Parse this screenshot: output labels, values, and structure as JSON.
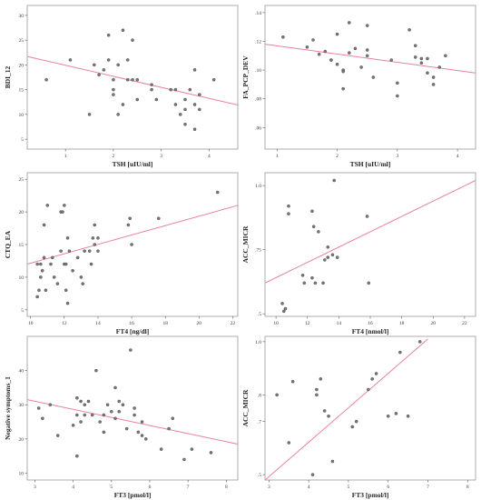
{
  "chart_data": [
    {
      "type": "scatter",
      "xlabel": "TSH [uIU/ml]",
      "ylabel": "BDI_12",
      "xlim": [
        0.2,
        4.6
      ],
      "ylim": [
        3,
        32
      ],
      "xticks": [
        1,
        2,
        3,
        4
      ],
      "yticks": [
        5,
        10,
        15,
        20,
        25,
        30
      ],
      "points": [
        [
          0.6,
          17
        ],
        [
          1.1,
          21
        ],
        [
          1.5,
          10
        ],
        [
          1.6,
          20
        ],
        [
          1.7,
          18
        ],
        [
          1.8,
          19
        ],
        [
          1.9,
          21
        ],
        [
          1.9,
          26
        ],
        [
          2.0,
          17
        ],
        [
          2.0,
          15
        ],
        [
          2.0,
          14
        ],
        [
          2.1,
          20
        ],
        [
          2.1,
          10
        ],
        [
          2.2,
          27
        ],
        [
          2.2,
          12
        ],
        [
          2.3,
          21
        ],
        [
          2.3,
          17
        ],
        [
          2.4,
          25
        ],
        [
          2.4,
          17
        ],
        [
          2.5,
          17
        ],
        [
          2.5,
          13
        ],
        [
          2.8,
          16
        ],
        [
          2.8,
          15
        ],
        [
          2.9,
          13
        ],
        [
          3.2,
          15
        ],
        [
          3.3,
          15
        ],
        [
          3.3,
          12
        ],
        [
          3.4,
          10
        ],
        [
          3.5,
          13
        ],
        [
          3.5,
          11
        ],
        [
          3.5,
          8
        ],
        [
          3.6,
          15
        ],
        [
          3.7,
          7
        ],
        [
          3.7,
          19
        ],
        [
          3.7,
          12
        ],
        [
          3.8,
          14
        ],
        [
          3.8,
          11
        ],
        [
          4.1,
          17
        ]
      ],
      "fit_line": [
        [
          0.2,
          21.7
        ],
        [
          4.6,
          11.9
        ]
      ]
    },
    {
      "type": "scatter",
      "xlabel": "TSH [uIU/ml]",
      "ylabel": "FA_PCP_DEV",
      "xlim": [
        0.8,
        4.3
      ],
      "ylim": [
        0.045,
        0.145
      ],
      "xticks": [
        1,
        2,
        3,
        4
      ],
      "yticks": [
        0.06,
        0.08,
        0.1,
        0.12,
        0.14
      ],
      "tick_labels_y": [
        ".06",
        ".08",
        ".10",
        ".12",
        ".14"
      ],
      "points": [
        [
          1.1,
          0.123
        ],
        [
          1.5,
          0.116
        ],
        [
          1.6,
          0.121
        ],
        [
          1.7,
          0.111
        ],
        [
          1.8,
          0.113
        ],
        [
          1.9,
          0.107
        ],
        [
          1.9,
          0.107
        ],
        [
          2.0,
          0.125
        ],
        [
          2.0,
          0.104
        ],
        [
          2.1,
          0.1
        ],
        [
          2.1,
          0.099
        ],
        [
          2.1,
          0.087
        ],
        [
          2.2,
          0.133
        ],
        [
          2.2,
          0.112
        ],
        [
          2.3,
          0.115
        ],
        [
          2.4,
          0.102
        ],
        [
          2.5,
          0.131
        ],
        [
          2.5,
          0.114
        ],
        [
          2.5,
          0.11
        ],
        [
          2.6,
          0.095
        ],
        [
          2.9,
          0.107
        ],
        [
          3.0,
          0.091
        ],
        [
          3.0,
          0.082
        ],
        [
          3.2,
          0.128
        ],
        [
          3.3,
          0.117
        ],
        [
          3.3,
          0.109
        ],
        [
          3.4,
          0.108
        ],
        [
          3.4,
          0.105
        ],
        [
          3.5,
          0.098
        ],
        [
          3.5,
          0.108
        ],
        [
          3.6,
          0.095
        ],
        [
          3.6,
          0.09
        ],
        [
          3.7,
          0.102
        ],
        [
          3.8,
          0.11
        ]
      ],
      "fit_line": [
        [
          0.8,
          0.118
        ],
        [
          4.3,
          0.098
        ]
      ]
    },
    {
      "type": "scatter",
      "xlabel": "FT4 [ng/dl]",
      "ylabel": "CTQ_EA",
      "xlim": [
        9.8,
        22.3
      ],
      "ylim": [
        4,
        26
      ],
      "xticks": [
        10,
        12,
        14,
        16,
        18,
        20,
        22
      ],
      "yticks": [
        5,
        10,
        15,
        20,
        25
      ],
      "points": [
        [
          10.4,
          7
        ],
        [
          10.4,
          12
        ],
        [
          10.5,
          8
        ],
        [
          10.6,
          10
        ],
        [
          10.6,
          12
        ],
        [
          10.7,
          11
        ],
        [
          10.8,
          13
        ],
        [
          10.8,
          18
        ],
        [
          10.9,
          8
        ],
        [
          11.0,
          21
        ],
        [
          11.2,
          12
        ],
        [
          11.3,
          13
        ],
        [
          11.4,
          10
        ],
        [
          11.6,
          9
        ],
        [
          11.8,
          14
        ],
        [
          11.8,
          20
        ],
        [
          11.9,
          20
        ],
        [
          12.0,
          21
        ],
        [
          12.0,
          12
        ],
        [
          12.1,
          8
        ],
        [
          12.1,
          12
        ],
        [
          12.2,
          16
        ],
        [
          12.2,
          6
        ],
        [
          12.3,
          14
        ],
        [
          12.5,
          11
        ],
        [
          12.8,
          13
        ],
        [
          13.0,
          10
        ],
        [
          13.1,
          9
        ],
        [
          13.2,
          14
        ],
        [
          13.5,
          14
        ],
        [
          13.6,
          12
        ],
        [
          13.7,
          16
        ],
        [
          13.8,
          18
        ],
        [
          13.8,
          15
        ],
        [
          14.0,
          16
        ],
        [
          14.0,
          14
        ],
        [
          15.8,
          18
        ],
        [
          15.9,
          19
        ],
        [
          16.0,
          15
        ],
        [
          17.6,
          19
        ],
        [
          21.1,
          23
        ]
      ],
      "fit_line": [
        [
          9.8,
          12
        ],
        [
          22.3,
          21
        ]
      ]
    },
    {
      "type": "scatter",
      "xlabel": "FT4 [nmol/l]",
      "ylabel": "ACC_MICR",
      "xlim": [
        9.3,
        22.7
      ],
      "ylim": [
        0.49,
        1.05
      ],
      "xticks": [
        10,
        12,
        14,
        16,
        18,
        20,
        22
      ],
      "yticks": [
        0.5,
        0.75,
        1.0
      ],
      "tick_labels_y": [
        ".5",
        ".75",
        "1.0"
      ],
      "points": [
        [
          10.4,
          0.54
        ],
        [
          10.5,
          0.51
        ],
        [
          10.6,
          0.52
        ],
        [
          10.8,
          0.92
        ],
        [
          10.8,
          0.89
        ],
        [
          11.7,
          0.65
        ],
        [
          11.8,
          0.62
        ],
        [
          12.3,
          0.64
        ],
        [
          12.3,
          0.9
        ],
        [
          12.4,
          0.84
        ],
        [
          12.5,
          0.62
        ],
        [
          12.7,
          0.82
        ],
        [
          13.0,
          0.62
        ],
        [
          13.1,
          0.71
        ],
        [
          13.3,
          0.76
        ],
        [
          13.3,
          0.72
        ],
        [
          13.6,
          0.73
        ],
        [
          13.7,
          1.02
        ],
        [
          13.9,
          0.72
        ],
        [
          15.8,
          0.88
        ],
        [
          15.9,
          0.62
        ]
      ],
      "fit_line": [
        [
          9.3,
          0.62
        ],
        [
          22.7,
          1.02
        ]
      ]
    },
    {
      "type": "scatter",
      "xlabel": "FT3 [pmol/l]",
      "ylabel": "Negative symptoms_1",
      "xlim": [
        2.8,
        8.3
      ],
      "ylim": [
        8,
        50
      ],
      "xticks": [
        3,
        4,
        5,
        6,
        7,
        8
      ],
      "yticks": [
        10,
        20,
        30,
        40
      ],
      "points": [
        [
          3.1,
          29
        ],
        [
          3.2,
          26
        ],
        [
          3.4,
          30
        ],
        [
          3.6,
          21
        ],
        [
          4.0,
          24
        ],
        [
          4.1,
          32
        ],
        [
          4.1,
          27
        ],
        [
          4.1,
          15
        ],
        [
          4.2,
          25
        ],
        [
          4.2,
          31
        ],
        [
          4.3,
          30
        ],
        [
          4.3,
          27
        ],
        [
          4.4,
          31
        ],
        [
          4.5,
          27
        ],
        [
          4.6,
          40
        ],
        [
          4.7,
          25
        ],
        [
          4.8,
          27
        ],
        [
          4.8,
          22
        ],
        [
          4.9,
          30
        ],
        [
          5.0,
          28
        ],
        [
          5.1,
          35
        ],
        [
          5.1,
          26
        ],
        [
          5.2,
          28
        ],
        [
          5.2,
          31
        ],
        [
          5.3,
          30
        ],
        [
          5.4,
          23
        ],
        [
          5.5,
          46
        ],
        [
          5.6,
          27
        ],
        [
          5.6,
          29
        ],
        [
          5.7,
          22
        ],
        [
          5.8,
          25
        ],
        [
          5.8,
          21
        ],
        [
          5.9,
          20
        ],
        [
          6.3,
          17
        ],
        [
          6.5,
          23
        ],
        [
          6.6,
          26
        ],
        [
          6.9,
          14
        ],
        [
          7.1,
          17
        ],
        [
          7.6,
          16
        ]
      ],
      "fit_line": [
        [
          2.8,
          31.5
        ],
        [
          8.3,
          18.5
        ]
      ]
    },
    {
      "type": "scatter",
      "xlabel": "FT3 [pmol/l]",
      "ylabel": "ACC_MICR",
      "xlim": [
        2.9,
        8.2
      ],
      "ylim": [
        0.48,
        1.02
      ],
      "xticks": [
        3,
        4,
        5,
        6,
        7,
        8
      ],
      "yticks": [
        0.5,
        0.7,
        0.8,
        1.0
      ],
      "tick_labels_y": [
        ".5",
        ".7",
        ".8",
        "1.0"
      ],
      "points": [
        [
          3.2,
          0.8
        ],
        [
          3.5,
          0.62
        ],
        [
          3.6,
          0.85
        ],
        [
          4.1,
          0.5
        ],
        [
          4.2,
          0.8
        ],
        [
          4.2,
          0.82
        ],
        [
          4.3,
          0.86
        ],
        [
          4.4,
          0.74
        ],
        [
          4.5,
          0.72
        ],
        [
          4.6,
          0.55
        ],
        [
          5.1,
          0.68
        ],
        [
          5.2,
          0.7
        ],
        [
          5.5,
          0.82
        ],
        [
          5.6,
          0.86
        ],
        [
          5.7,
          0.88
        ],
        [
          6.0,
          0.72
        ],
        [
          6.2,
          0.73
        ],
        [
          6.3,
          0.96
        ],
        [
          6.5,
          0.72
        ],
        [
          6.8,
          1.0
        ]
      ],
      "fit_line": [
        [
          2.9,
          0.48
        ],
        [
          7.0,
          1.01
        ]
      ]
    }
  ]
}
